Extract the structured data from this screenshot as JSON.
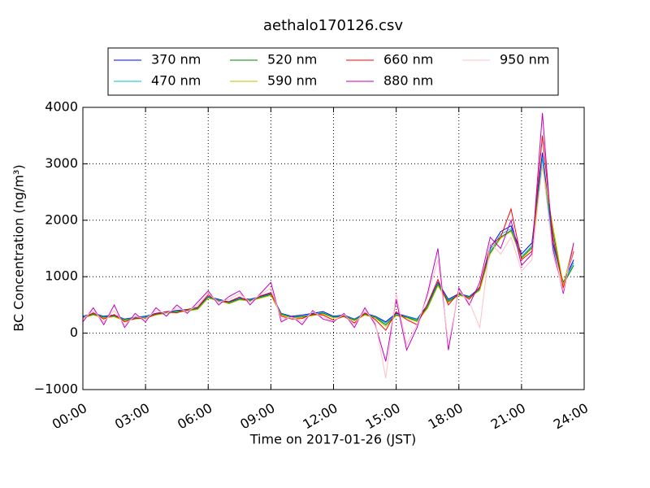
{
  "chart_data": {
    "type": "line",
    "title": "aethalo170126.csv",
    "xlabel": "Time on 2017-01-26 (JST)",
    "ylabel": "BC Concentration (ng/m³)",
    "grid": true,
    "legend": "top",
    "xlim": [
      0,
      24
    ],
    "xticks": [
      {
        "value": 0,
        "label": "00:00"
      },
      {
        "value": 3,
        "label": "03:00"
      },
      {
        "value": 6,
        "label": "06:00"
      },
      {
        "value": 9,
        "label": "09:00"
      },
      {
        "value": 12,
        "label": "12:00"
      },
      {
        "value": 15,
        "label": "15:00"
      },
      {
        "value": 18,
        "label": "18:00"
      },
      {
        "value": 21,
        "label": "21:00"
      },
      {
        "value": 24,
        "label": "24:00"
      }
    ],
    "ylim": [
      -1000,
      4000
    ],
    "yticks": [
      {
        "value": -1000,
        "label": "−1000"
      },
      0,
      1000,
      2000,
      3000,
      4000
    ],
    "x": [
      0,
      0.5,
      1,
      1.5,
      2,
      2.5,
      3,
      3.5,
      4,
      4.5,
      5,
      5.5,
      6,
      6.5,
      7,
      7.5,
      8,
      8.5,
      9,
      9.5,
      10,
      10.5,
      11,
      11.5,
      12,
      12.5,
      13,
      13.5,
      14,
      14.5,
      15,
      15.5,
      16,
      16.5,
      17,
      17.5,
      18,
      18.5,
      19,
      19.5,
      20,
      20.5,
      21,
      21.5,
      22,
      22.5,
      23,
      23.5
    ],
    "series": [
      {
        "name": "370 nm",
        "color": "#0000ff",
        "values": [
          300,
          350,
          300,
          320,
          250,
          280,
          300,
          350,
          380,
          400,
          420,
          450,
          650,
          600,
          550,
          620,
          600,
          650,
          700,
          350,
          300,
          320,
          350,
          380,
          300,
          320,
          250,
          350,
          300,
          200,
          350,
          300,
          250,
          500,
          900,
          600,
          700,
          650,
          800,
          1500,
          1800,
          1900,
          1400,
          1600,
          3200,
          1600,
          900,
          1300
        ]
      },
      {
        "name": "470 nm",
        "color": "#00bfbf",
        "values": [
          290,
          340,
          290,
          310,
          240,
          270,
          290,
          340,
          370,
          390,
          410,
          440,
          640,
          590,
          540,
          610,
          590,
          640,
          690,
          340,
          290,
          300,
          330,
          360,
          290,
          310,
          240,
          340,
          290,
          180,
          330,
          290,
          240,
          480,
          880,
          580,
          690,
          640,
          780,
          1450,
          1750,
          1850,
          1350,
          1550,
          3100,
          1550,
          880,
          1250
        ]
      },
      {
        "name": "520 nm",
        "color": "#008000",
        "values": [
          280,
          330,
          280,
          300,
          230,
          260,
          280,
          330,
          360,
          380,
          400,
          430,
          630,
          580,
          530,
          600,
          580,
          630,
          680,
          330,
          280,
          290,
          320,
          350,
          280,
          300,
          230,
          330,
          280,
          150,
          320,
          280,
          220,
          460,
          860,
          560,
          680,
          630,
          770,
          1420,
          1700,
          1820,
          1330,
          1520,
          3000,
          1800,
          860,
          1200
        ]
      },
      {
        "name": "590 nm",
        "color": "#bfbf00",
        "values": [
          270,
          320,
          270,
          290,
          220,
          250,
          270,
          320,
          350,
          370,
          390,
          420,
          620,
          570,
          520,
          590,
          570,
          620,
          670,
          320,
          270,
          280,
          310,
          340,
          270,
          290,
          220,
          320,
          270,
          120,
          310,
          270,
          200,
          440,
          840,
          540,
          670,
          620,
          760,
          1400,
          1680,
          1800,
          1320,
          1500,
          2950,
          1900,
          850,
          1600
        ]
      },
      {
        "name": "660 nm",
        "color": "#ff0000",
        "values": [
          260,
          360,
          250,
          330,
          200,
          260,
          260,
          340,
          380,
          360,
          420,
          460,
          680,
          560,
          560,
          640,
          560,
          660,
          720,
          300,
          250,
          260,
          340,
          320,
          230,
          300,
          180,
          360,
          240,
          50,
          380,
          240,
          150,
          520,
          950,
          500,
          720,
          600,
          820,
          1550,
          1700,
          2200,
          1300,
          1450,
          3500,
          1700,
          800,
          1450
        ]
      },
      {
        "name": "880 nm",
        "color": "#bf00bf",
        "values": [
          200,
          450,
          150,
          500,
          100,
          350,
          200,
          450,
          300,
          500,
          350,
          550,
          750,
          500,
          650,
          750,
          500,
          700,
          900,
          200,
          300,
          150,
          400,
          250,
          200,
          350,
          100,
          450,
          150,
          -500,
          600,
          -300,
          100,
          700,
          1500,
          -300,
          800,
          500,
          900,
          1700,
          1500,
          2000,
          1200,
          1400,
          3900,
          1500,
          700,
          1600
        ]
      },
      {
        "name": "950 nm",
        "color": "#ffc0cb",
        "values": [
          250,
          400,
          200,
          400,
          150,
          300,
          250,
          400,
          350,
          450,
          380,
          500,
          700,
          550,
          600,
          700,
          550,
          680,
          800,
          250,
          280,
          200,
          380,
          280,
          220,
          330,
          150,
          400,
          200,
          -800,
          700,
          -200,
          150,
          650,
          1300,
          -200,
          750,
          550,
          100,
          1600,
          1400,
          1700,
          1100,
          1300,
          3000,
          1400,
          750,
          1500
        ]
      }
    ]
  }
}
